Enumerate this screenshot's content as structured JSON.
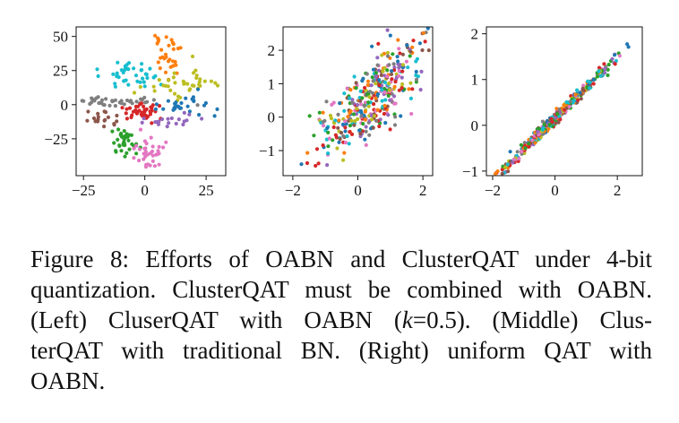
{
  "figure": {
    "caption_lines": [
      "Figure 8:  Efforts of OABN and ClusterQAT under 4-bit",
      "quantization. ClusterQAT must be combined with OABN.",
      [
        "(Left) CluserQAT with OABN (",
        "k",
        "=0.5).   (Middle) Clus-"
      ],
      "terQAT with traditional BN. (Right) uniform QAT with",
      "OABN."
    ]
  },
  "palette": [
    "#1f77b4",
    "#ff7f0e",
    "#2ca02c",
    "#d62728",
    "#9467bd",
    "#8c564b",
    "#e377c2",
    "#7f7f7f",
    "#bcbd22",
    "#17becf"
  ],
  "chart_data": [
    {
      "type": "scatter",
      "title": "",
      "xlabel": "",
      "ylabel": "",
      "xlim": [
        -28,
        33
      ],
      "ylim": [
        -52,
        57
      ],
      "xticks": [
        -25,
        0,
        25
      ],
      "yticks": [
        -25,
        0,
        25,
        50
      ],
      "xtick_labels": [
        "−25",
        "0",
        "25"
      ],
      "ytick_labels": [
        "−25",
        "0",
        "25",
        "50"
      ],
      "clusters": [
        {
          "color_index": 9,
          "center": [
            -6,
            23
          ],
          "spread": [
            5,
            5
          ],
          "count": 40
        },
        {
          "color_index": 1,
          "center": [
            10,
            38
          ],
          "spread": [
            3,
            9
          ],
          "count": 32
        },
        {
          "color_index": 8,
          "center": [
            17,
            15
          ],
          "spread": [
            8,
            5
          ],
          "count": 40
        },
        {
          "color_index": 7,
          "center": [
            -12,
            2
          ],
          "spread": [
            9,
            2
          ],
          "count": 40
        },
        {
          "color_index": 3,
          "center": [
            -1,
            -5
          ],
          "spread": [
            4,
            3
          ],
          "count": 40
        },
        {
          "color_index": 5,
          "center": [
            -17,
            -10
          ],
          "spread": [
            4,
            3
          ],
          "count": 18
        },
        {
          "color_index": 0,
          "center": [
            18,
            0
          ],
          "spread": [
            7,
            3
          ],
          "count": 30
        },
        {
          "color_index": 4,
          "center": [
            12,
            -11
          ],
          "spread": [
            6,
            3
          ],
          "count": 20
        },
        {
          "color_index": 2,
          "center": [
            -9,
            -25
          ],
          "spread": [
            3,
            6
          ],
          "count": 36
        },
        {
          "color_index": 6,
          "center": [
            2,
            -35
          ],
          "spread": [
            3,
            7
          ],
          "count": 36
        }
      ]
    },
    {
      "type": "scatter",
      "title": "",
      "xlabel": "",
      "ylabel": "",
      "xlim": [
        -2.3,
        2.3
      ],
      "ylim": [
        -1.75,
        2.7
      ],
      "xticks": [
        -2,
        0,
        2
      ],
      "yticks": [
        -1,
        0,
        1,
        2
      ],
      "xtick_labels": [
        "−2",
        "0",
        "2"
      ],
      "ytick_labels": [
        "−1",
        "0",
        "1",
        "2"
      ],
      "relation": {
        "slope": 0.75,
        "intercept": 0.25,
        "x_mean": 0.4,
        "x_sd": 0.85,
        "noise_sd": 0.55
      },
      "count": 380
    },
    {
      "type": "scatter",
      "title": "",
      "xlabel": "",
      "ylabel": "",
      "xlim": [
        -2.2,
        2.8
      ],
      "ylim": [
        -1.1,
        2.15
      ],
      "xticks": [
        -2,
        0,
        2
      ],
      "yticks": [
        -1,
        0,
        1,
        2
      ],
      "xtick_labels": [
        "−2",
        "0",
        "2"
      ],
      "ytick_labels": [
        "−1",
        "0",
        "1",
        "2"
      ],
      "relation": {
        "slope": 0.68,
        "intercept": 0.15,
        "x_mean": 0.0,
        "x_sd": 0.9,
        "noise_sd": 0.07
      },
      "count": 380
    }
  ]
}
